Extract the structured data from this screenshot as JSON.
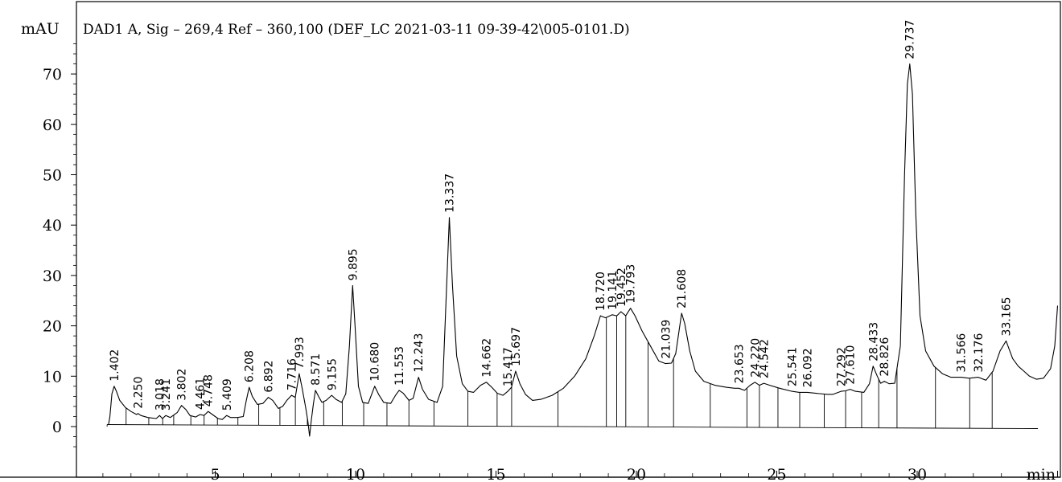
{
  "chart_data": {
    "type": "line",
    "title": "DAD1 A, Sig – 269,4 Ref – 360,100 (DEF_LC 2021-03-11 09-39-42\\005-0101.D)",
    "ylabel": "mAU",
    "xlabel": "min",
    "xlim": [
      0.0,
      35.0
    ],
    "ylim": [
      -5.5,
      78.0
    ],
    "x_ticks": [
      5,
      10,
      15,
      20,
      25,
      30
    ],
    "y_ticks": [
      0,
      10,
      20,
      30,
      40,
      50,
      60,
      70
    ],
    "grid": false,
    "peaks": [
      {
        "rt": 1.402,
        "label": "1.402",
        "height": 8.0
      },
      {
        "rt": 2.25,
        "label": "2.250",
        "height": 2.6
      },
      {
        "rt": 3.018,
        "label": "3.018",
        "height": 2.2
      },
      {
        "rt": 3.241,
        "label": "3.241",
        "height": 2.2
      },
      {
        "rt": 3.802,
        "label": "3.802",
        "height": 4.2
      },
      {
        "rt": 4.461,
        "label": "4.461",
        "height": 2.4
      },
      {
        "rt": 4.748,
        "label": "4.748",
        "height": 3.0
      },
      {
        "rt": 5.409,
        "label": "5.409",
        "height": 2.2
      },
      {
        "rt": 6.208,
        "label": "6.208",
        "height": 7.8
      },
      {
        "rt": 6.892,
        "label": "6.892",
        "height": 5.8
      },
      {
        "rt": 7.716,
        "label": "7.716",
        "height": 6.2
      },
      {
        "rt": 7.993,
        "label": "7.993",
        "height": 10.5
      },
      {
        "rt": 8.571,
        "label": "8.571",
        "height": 7.2
      },
      {
        "rt": 9.155,
        "label": "9.155",
        "height": 6.2
      },
      {
        "rt": 9.895,
        "label": "9.895",
        "height": 28.0
      },
      {
        "rt": 10.68,
        "label": "10.680",
        "height": 8.0
      },
      {
        "rt": 11.553,
        "label": "11.553",
        "height": 7.2
      },
      {
        "rt": 12.243,
        "label": "12.243",
        "height": 9.8
      },
      {
        "rt": 13.337,
        "label": "13.337",
        "height": 41.5
      },
      {
        "rt": 14.662,
        "label": "14.662",
        "height": 8.8
      },
      {
        "rt": 15.417,
        "label": "15.417",
        "height": 7.0
      },
      {
        "rt": 15.697,
        "label": "15.697",
        "height": 11.0
      },
      {
        "rt": 18.72,
        "label": "18.720",
        "height": 22.0
      },
      {
        "rt": 19.141,
        "label": "19.141",
        "height": 22.2
      },
      {
        "rt": 19.452,
        "label": "19.452",
        "height": 22.8
      },
      {
        "rt": 19.793,
        "label": "19.793",
        "height": 23.5
      },
      {
        "rt": 21.039,
        "label": "21.039",
        "height": 12.5
      },
      {
        "rt": 21.608,
        "label": "21.608",
        "height": 22.5
      },
      {
        "rt": 23.653,
        "label": "23.653",
        "height": 7.6
      },
      {
        "rt": 24.22,
        "label": "24.220",
        "height": 8.8
      },
      {
        "rt": 24.542,
        "label": "24.542",
        "height": 8.6
      },
      {
        "rt": 25.541,
        "label": "25.541",
        "height": 7.0
      },
      {
        "rt": 26.092,
        "label": "26.092",
        "height": 6.8
      },
      {
        "rt": 27.292,
        "label": "27.292",
        "height": 7.0
      },
      {
        "rt": 27.61,
        "label": "27.610",
        "height": 7.4
      },
      {
        "rt": 28.433,
        "label": "28.433",
        "height": 12.0
      },
      {
        "rt": 28.826,
        "label": "28.826",
        "height": 9.0
      },
      {
        "rt": 29.737,
        "label": "29.737",
        "height": 72.0
      },
      {
        "rt": 31.566,
        "label": "31.566",
        "height": 9.8
      },
      {
        "rt": 32.176,
        "label": "32.176",
        "height": 9.8
      },
      {
        "rt": 33.165,
        "label": "33.165",
        "height": 17.0
      }
    ],
    "trace": [
      [
        1.2,
        0.4
      ],
      [
        1.25,
        2.0
      ],
      [
        1.32,
        6.5
      ],
      [
        1.4,
        8.0
      ],
      [
        1.48,
        7.0
      ],
      [
        1.6,
        5.2
      ],
      [
        1.8,
        3.8
      ],
      [
        2.0,
        3.0
      ],
      [
        2.2,
        2.4
      ],
      [
        2.25,
        2.6
      ],
      [
        2.35,
        2.2
      ],
      [
        2.6,
        1.8
      ],
      [
        2.9,
        1.6
      ],
      [
        3.02,
        2.2
      ],
      [
        3.12,
        1.6
      ],
      [
        3.24,
        2.2
      ],
      [
        3.4,
        1.8
      ],
      [
        3.65,
        2.8
      ],
      [
        3.8,
        4.2
      ],
      [
        3.95,
        3.4
      ],
      [
        4.1,
        2.2
      ],
      [
        4.3,
        1.9
      ],
      [
        4.46,
        2.4
      ],
      [
        4.6,
        2.2
      ],
      [
        4.75,
        3.0
      ],
      [
        4.9,
        2.4
      ],
      [
        5.1,
        1.6
      ],
      [
        5.25,
        1.4
      ],
      [
        5.41,
        2.2
      ],
      [
        5.55,
        1.8
      ],
      [
        5.8,
        1.8
      ],
      [
        6.0,
        2.0
      ],
      [
        6.1,
        5.0
      ],
      [
        6.21,
        7.8
      ],
      [
        6.32,
        6.0
      ],
      [
        6.5,
        4.4
      ],
      [
        6.7,
        4.6
      ],
      [
        6.89,
        5.8
      ],
      [
        7.05,
        5.2
      ],
      [
        7.25,
        3.6
      ],
      [
        7.4,
        4.0
      ],
      [
        7.55,
        5.2
      ],
      [
        7.72,
        6.2
      ],
      [
        7.85,
        5.8
      ],
      [
        7.99,
        10.5
      ],
      [
        8.1,
        7.5
      ],
      [
        8.22,
        3.8
      ],
      [
        8.3,
        1.0
      ],
      [
        8.36,
        -1.9
      ],
      [
        8.42,
        1.2
      ],
      [
        8.5,
        4.6
      ],
      [
        8.57,
        7.2
      ],
      [
        8.68,
        6.0
      ],
      [
        8.8,
        4.8
      ],
      [
        8.95,
        5.2
      ],
      [
        9.15,
        6.2
      ],
      [
        9.3,
        5.4
      ],
      [
        9.5,
        4.8
      ],
      [
        9.65,
        6.5
      ],
      [
        9.78,
        16.0
      ],
      [
        9.895,
        28.0
      ],
      [
        9.98,
        20.0
      ],
      [
        10.1,
        8.0
      ],
      [
        10.25,
        4.8
      ],
      [
        10.45,
        4.6
      ],
      [
        10.58,
        6.5
      ],
      [
        10.68,
        8.0
      ],
      [
        10.82,
        6.4
      ],
      [
        11.0,
        4.8
      ],
      [
        11.25,
        4.6
      ],
      [
        11.42,
        6.2
      ],
      [
        11.55,
        7.2
      ],
      [
        11.7,
        6.6
      ],
      [
        11.9,
        5.2
      ],
      [
        12.05,
        5.6
      ],
      [
        12.24,
        9.8
      ],
      [
        12.38,
        7.4
      ],
      [
        12.6,
        5.4
      ],
      [
        12.9,
        4.8
      ],
      [
        13.1,
        8.0
      ],
      [
        13.22,
        25.0
      ],
      [
        13.337,
        41.5
      ],
      [
        13.45,
        28.0
      ],
      [
        13.6,
        14.0
      ],
      [
        13.8,
        8.5
      ],
      [
        14.0,
        7.0
      ],
      [
        14.2,
        6.8
      ],
      [
        14.45,
        8.2
      ],
      [
        14.66,
        8.8
      ],
      [
        14.85,
        7.8
      ],
      [
        15.05,
        6.6
      ],
      [
        15.25,
        6.2
      ],
      [
        15.42,
        7.0
      ],
      [
        15.55,
        7.8
      ],
      [
        15.7,
        11.0
      ],
      [
        15.85,
        8.5
      ],
      [
        16.05,
        6.4
      ],
      [
        16.3,
        5.2
      ],
      [
        16.6,
        5.4
      ],
      [
        17.0,
        6.2
      ],
      [
        17.4,
        7.6
      ],
      [
        17.8,
        10.0
      ],
      [
        18.2,
        13.5
      ],
      [
        18.5,
        18.0
      ],
      [
        18.72,
        22.0
      ],
      [
        18.9,
        21.6
      ],
      [
        19.14,
        22.2
      ],
      [
        19.3,
        22.0
      ],
      [
        19.45,
        22.8
      ],
      [
        19.62,
        22.0
      ],
      [
        19.79,
        23.5
      ],
      [
        19.95,
        22.0
      ],
      [
        20.2,
        19.0
      ],
      [
        20.5,
        16.0
      ],
      [
        20.8,
        13.0
      ],
      [
        21.04,
        12.5
      ],
      [
        21.25,
        12.6
      ],
      [
        21.4,
        14.5
      ],
      [
        21.52,
        19.0
      ],
      [
        21.61,
        22.5
      ],
      [
        21.72,
        20.5
      ],
      [
        21.9,
        15.0
      ],
      [
        22.1,
        11.0
      ],
      [
        22.4,
        9.0
      ],
      [
        22.8,
        8.2
      ],
      [
        23.2,
        7.8
      ],
      [
        23.5,
        7.6
      ],
      [
        23.65,
        7.6
      ],
      [
        23.85,
        7.2
      ],
      [
        24.05,
        8.2
      ],
      [
        24.22,
        8.8
      ],
      [
        24.38,
        8.2
      ],
      [
        24.54,
        8.6
      ],
      [
        24.75,
        8.2
      ],
      [
        25.1,
        7.6
      ],
      [
        25.54,
        7.0
      ],
      [
        25.8,
        6.8
      ],
      [
        26.09,
        6.8
      ],
      [
        26.4,
        6.6
      ],
      [
        26.8,
        6.4
      ],
      [
        27.0,
        6.4
      ],
      [
        27.29,
        7.0
      ],
      [
        27.45,
        7.1
      ],
      [
        27.61,
        7.4
      ],
      [
        27.8,
        7.0
      ],
      [
        28.1,
        6.8
      ],
      [
        28.3,
        8.5
      ],
      [
        28.43,
        12.0
      ],
      [
        28.58,
        10.0
      ],
      [
        28.7,
        8.6
      ],
      [
        28.83,
        9.0
      ],
      [
        29.0,
        8.5
      ],
      [
        29.2,
        8.6
      ],
      [
        29.4,
        16.0
      ],
      [
        29.55,
        50.0
      ],
      [
        29.65,
        68.0
      ],
      [
        29.737,
        72.0
      ],
      [
        29.83,
        66.0
      ],
      [
        29.95,
        42.0
      ],
      [
        30.1,
        22.0
      ],
      [
        30.3,
        15.0
      ],
      [
        30.6,
        12.0
      ],
      [
        30.9,
        10.5
      ],
      [
        31.2,
        9.8
      ],
      [
        31.566,
        9.8
      ],
      [
        31.85,
        9.6
      ],
      [
        32.176,
        9.8
      ],
      [
        32.45,
        9.2
      ],
      [
        32.7,
        11.0
      ],
      [
        32.95,
        15.0
      ],
      [
        33.165,
        17.0
      ],
      [
        33.4,
        13.5
      ],
      [
        33.6,
        12.0
      ],
      [
        33.8,
        11.0
      ],
      [
        34.0,
        10.0
      ],
      [
        34.25,
        9.4
      ],
      [
        34.5,
        9.6
      ],
      [
        34.75,
        11.5
      ],
      [
        34.9,
        16.0
      ],
      [
        35.0,
        24.0
      ]
    ]
  }
}
